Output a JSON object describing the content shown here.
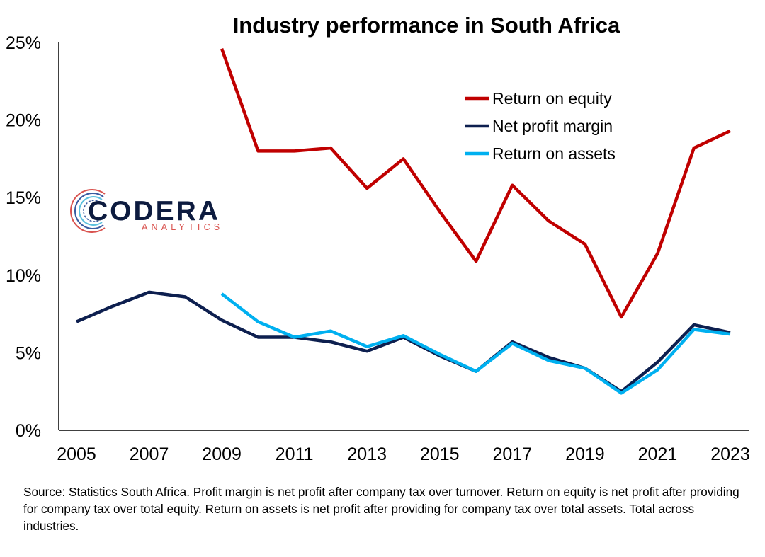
{
  "chart_data": {
    "type": "line",
    "title": "Industry performance in South Africa",
    "x": [
      2005,
      2006,
      2007,
      2008,
      2009,
      2010,
      2011,
      2012,
      2013,
      2014,
      2015,
      2016,
      2017,
      2018,
      2019,
      2020,
      2021,
      2022,
      2023
    ],
    "x_tick_labels": [
      "2005",
      "2007",
      "2009",
      "2011",
      "2013",
      "2015",
      "2017",
      "2019",
      "2021",
      "2023"
    ],
    "y_tick_labels": [
      "0%",
      "5%",
      "10%",
      "15%",
      "20%",
      "25%"
    ],
    "ylim": [
      0,
      25
    ],
    "y_ticks": [
      0,
      5,
      10,
      15,
      20,
      25
    ],
    "grid": false,
    "legend_position": "top-right",
    "series": [
      {
        "name": "Return on equity",
        "color": "#c00000",
        "values": [
          null,
          null,
          null,
          null,
          24.6,
          18.0,
          18.0,
          18.2,
          15.6,
          17.5,
          14.1,
          10.9,
          15.8,
          13.5,
          12.0,
          7.3,
          11.4,
          18.2,
          19.3
        ]
      },
      {
        "name": "Net profit margin",
        "color": "#0d1f4f",
        "values": [
          7.0,
          8.0,
          8.9,
          8.6,
          7.1,
          6.0,
          6.0,
          5.7,
          5.1,
          6.0,
          4.8,
          3.8,
          5.7,
          4.7,
          4.0,
          2.5,
          4.4,
          6.8,
          6.3
        ]
      },
      {
        "name": "Return on assets",
        "color": "#00b0f0",
        "values": [
          null,
          null,
          null,
          null,
          8.8,
          7.0,
          6.0,
          6.4,
          5.4,
          6.1,
          4.9,
          3.8,
          5.6,
          4.5,
          4.0,
          2.4,
          3.9,
          6.5,
          6.2
        ]
      }
    ]
  },
  "logo": {
    "name": "CODERA",
    "subtitle": "ANALYTICS",
    "colors": [
      "#d9534f",
      "#3a5ba0",
      "#5bc0de"
    ]
  },
  "source_note": "Source: Statistics South Africa. Profit margin is net profit after company tax over turnover. Return on equity is net profit after providing for company tax over total equity. Return on assets is net profit after providing for company tax over total assets. Total across industries."
}
